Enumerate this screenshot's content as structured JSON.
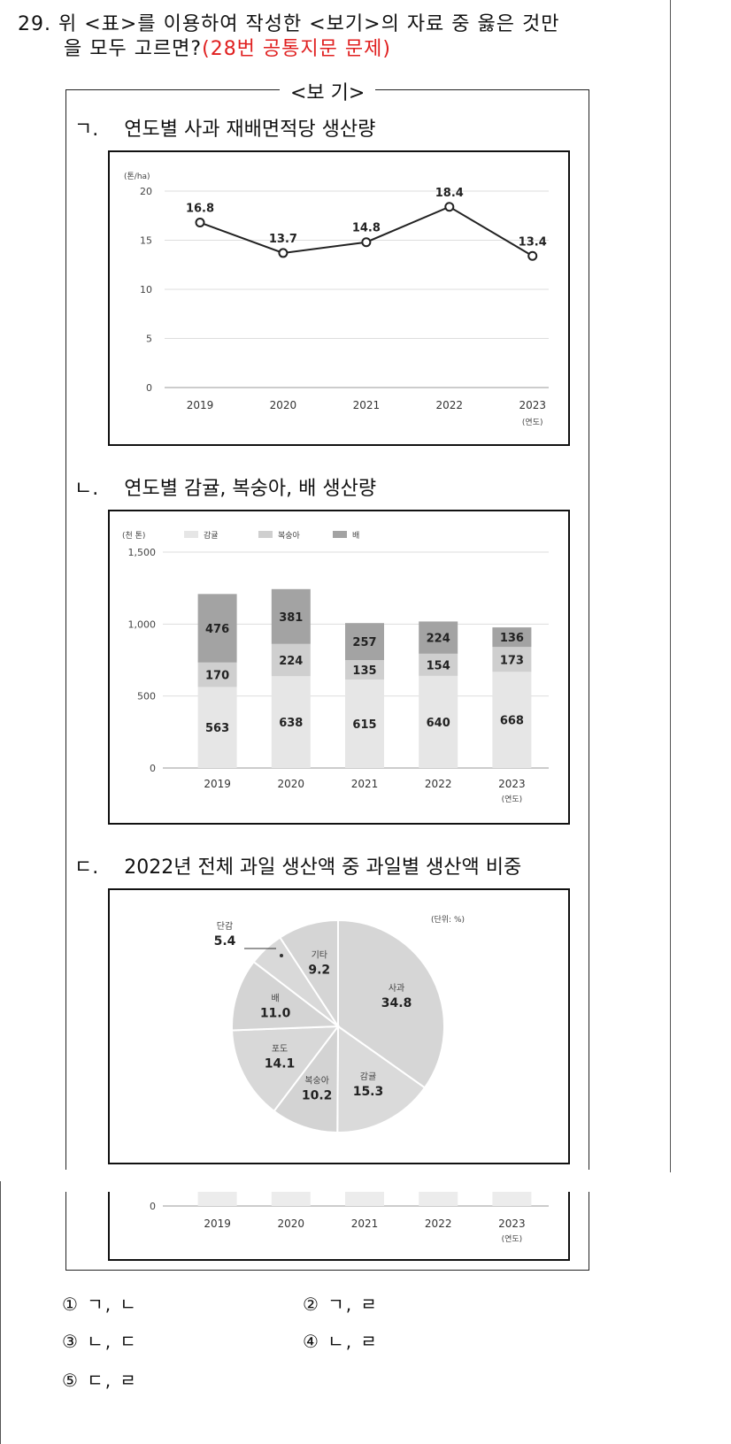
{
  "question": {
    "number": "29.",
    "line1": "위 <표>를 이용하여 작성한 <보기>의 자료 중 옳은 것만",
    "line2": "을 모두 고르면?",
    "note": "(28번 공통지문 문제)"
  },
  "bogi_title": "<보 기>",
  "items": {
    "g": {
      "marker": "ㄱ.",
      "title": "연도별 사과 재배면적당 생산량"
    },
    "n": {
      "marker": "ㄴ.",
      "title": "연도별 감귤, 복숭아, 배 생산량"
    },
    "d": {
      "marker": "ㄷ.",
      "title": "2022년 전체 과일 생산액 중 과일별 생산액 비중"
    }
  },
  "chart_data": [
    {
      "type": "line",
      "unit": "(톤/ha)",
      "x": [
        "2019",
        "2020",
        "2021",
        "2022",
        "2023"
      ],
      "x_unit": "(연도)",
      "values": [
        16.8,
        13.7,
        14.8,
        18.4,
        13.4
      ],
      "ylim": [
        0,
        20
      ],
      "yticks": [
        "0",
        "5",
        "10",
        "15",
        "20"
      ],
      "grid": true
    },
    {
      "type": "bar",
      "stacked": true,
      "unit": "(천 톤)",
      "categories": [
        "2019",
        "2020",
        "2021",
        "2022",
        "2023"
      ],
      "x_unit": "(연도)",
      "series": [
        {
          "name": "감귤",
          "values": [
            563,
            638,
            615,
            640,
            668
          ],
          "color": "#e6e6e6"
        },
        {
          "name": "복숭아",
          "values": [
            170,
            224,
            135,
            154,
            173
          ],
          "color": "#cfcfcf"
        },
        {
          "name": "배",
          "values": [
            476,
            381,
            257,
            224,
            136
          ],
          "color": "#a3a3a3"
        }
      ],
      "ylim": [
        0,
        1500
      ],
      "yticks": [
        "0",
        "500",
        "1,000",
        "1,500"
      ],
      "grid": true,
      "legend": "top"
    },
    {
      "type": "pie",
      "unit": "(단위: %)",
      "slices": [
        {
          "label": "사과",
          "value": "34.8"
        },
        {
          "label": "감귤",
          "value": "15.3"
        },
        {
          "label": "복숭아",
          "value": "10.2"
        },
        {
          "label": "포도",
          "value": "14.1"
        },
        {
          "label": "배",
          "value": "11.0"
        },
        {
          "label": "단감",
          "value": "5.4"
        },
        {
          "label": "기타",
          "value": "9.2"
        }
      ]
    },
    {
      "type": "bar",
      "partial": true,
      "categories": [
        "2019",
        "2020",
        "2021",
        "2022",
        "2023"
      ],
      "x_unit": "(연도)",
      "yticks": [
        "0"
      ]
    }
  ],
  "choices": [
    {
      "num": "①",
      "text": "ㄱ, ㄴ"
    },
    {
      "num": "②",
      "text": "ㄱ, ㄹ"
    },
    {
      "num": "③",
      "text": "ㄴ, ㄷ"
    },
    {
      "num": "④",
      "text": "ㄴ, ㄹ"
    },
    {
      "num": "⑤",
      "text": "ㄷ, ㄹ"
    }
  ]
}
